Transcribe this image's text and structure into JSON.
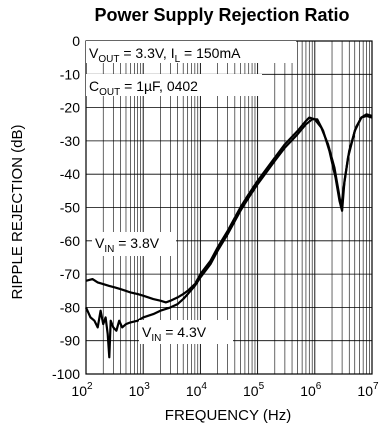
{
  "chart_data": {
    "type": "line",
    "title": "Power Supply Rejection Ratio",
    "xlabel": "FREQUENCY (Hz)",
    "ylabel": "RIPPLE REJECTION (dB)",
    "x_scale": "log",
    "xlim": [
      100,
      10000000
    ],
    "ylim": [
      -100,
      0
    ],
    "grid": true,
    "x_ticks": [
      {
        "base": "10",
        "exp": "2",
        "value": 100
      },
      {
        "base": "10",
        "exp": "3",
        "value": 1000
      },
      {
        "base": "10",
        "exp": "4",
        "value": 10000
      },
      {
        "base": "10",
        "exp": "5",
        "value": 100000
      },
      {
        "base": "10",
        "exp": "6",
        "value": 1000000
      },
      {
        "base": "10",
        "exp": "7",
        "value": 10000000
      }
    ],
    "y_ticks": [
      "0",
      "-10",
      "-20",
      "-30",
      "-40",
      "-50",
      "-60",
      "-70",
      "-80",
      "-90",
      "-100"
    ],
    "annotations": {
      "line1": {
        "pre": "V",
        "sub": "OUT",
        "mid": " = 3.3V, I",
        "sub2": "L",
        "post": " = 150mA"
      },
      "line2": {
        "pre": "C",
        "sub": "OUT",
        "post": " = 1µF, 0402"
      },
      "vin38": {
        "pre": "V",
        "sub": "IN",
        "post": " = 3.8V"
      },
      "vin43": {
        "pre": "V",
        "sub": "IN",
        "post": " = 4.3V"
      }
    },
    "series": [
      {
        "label_key": "vin38",
        "points": [
          [
            100,
            -72
          ],
          [
            130,
            -71.5
          ],
          [
            160,
            -72.5
          ],
          [
            200,
            -73
          ],
          [
            250,
            -73.5
          ],
          [
            320,
            -74
          ],
          [
            400,
            -74.5
          ],
          [
            600,
            -75.5
          ],
          [
            800,
            -76
          ],
          [
            1000,
            -76.5
          ],
          [
            1500,
            -77.5
          ],
          [
            2000,
            -78
          ],
          [
            2500,
            -78.5
          ],
          [
            3000,
            -78
          ],
          [
            4000,
            -77
          ],
          [
            5000,
            -76
          ],
          [
            6000,
            -75
          ],
          [
            8000,
            -73
          ],
          [
            10000,
            -70
          ],
          [
            15000,
            -66
          ],
          [
            20000,
            -62
          ],
          [
            30000,
            -57
          ],
          [
            50000,
            -50
          ],
          [
            70000,
            -46
          ],
          [
            100000,
            -42
          ],
          [
            200000,
            -35
          ],
          [
            300000,
            -31
          ],
          [
            500000,
            -27
          ],
          [
            700000,
            -24
          ],
          [
            800000,
            -23
          ],
          [
            1000000,
            -23.5
          ],
          [
            1300000,
            -26
          ],
          [
            1700000,
            -31
          ],
          [
            2200000,
            -38
          ],
          [
            2600000,
            -45
          ],
          [
            2900000,
            -50
          ],
          [
            3200000,
            -44
          ],
          [
            3800000,
            -35
          ],
          [
            5000000,
            -27
          ],
          [
            6500000,
            -23
          ],
          [
            8000000,
            -22.5
          ],
          [
            10000000,
            -23
          ]
        ]
      },
      {
        "label_key": "vin43",
        "points": [
          [
            100,
            -80
          ],
          [
            120,
            -83
          ],
          [
            140,
            -84
          ],
          [
            160,
            -86
          ],
          [
            180,
            -81
          ],
          [
            200,
            -85
          ],
          [
            220,
            -83
          ],
          [
            240,
            -88
          ],
          [
            255,
            -95
          ],
          [
            270,
            -84
          ],
          [
            300,
            -86
          ],
          [
            340,
            -87
          ],
          [
            380,
            -84
          ],
          [
            430,
            -86
          ],
          [
            500,
            -85
          ],
          [
            600,
            -84.5
          ],
          [
            800,
            -84
          ],
          [
            1000,
            -83
          ],
          [
            1500,
            -82
          ],
          [
            2000,
            -81
          ],
          [
            3000,
            -80
          ],
          [
            4000,
            -79
          ],
          [
            5000,
            -77.5
          ],
          [
            6000,
            -76
          ],
          [
            8000,
            -73.5
          ],
          [
            10000,
            -71
          ],
          [
            15000,
            -67
          ],
          [
            20000,
            -63
          ],
          [
            30000,
            -58
          ],
          [
            50000,
            -51
          ],
          [
            70000,
            -47
          ],
          [
            100000,
            -43
          ],
          [
            200000,
            -36
          ],
          [
            300000,
            -32
          ],
          [
            500000,
            -28
          ],
          [
            700000,
            -25
          ],
          [
            900000,
            -23.5
          ],
          [
            1100000,
            -23.5
          ],
          [
            1400000,
            -27
          ],
          [
            1800000,
            -33
          ],
          [
            2300000,
            -41
          ],
          [
            2700000,
            -48
          ],
          [
            3000000,
            -51
          ],
          [
            3300000,
            -42
          ],
          [
            4000000,
            -33
          ],
          [
            5200000,
            -26
          ],
          [
            6500000,
            -23
          ],
          [
            8000000,
            -22
          ],
          [
            10000000,
            -22.5
          ]
        ]
      }
    ]
  }
}
